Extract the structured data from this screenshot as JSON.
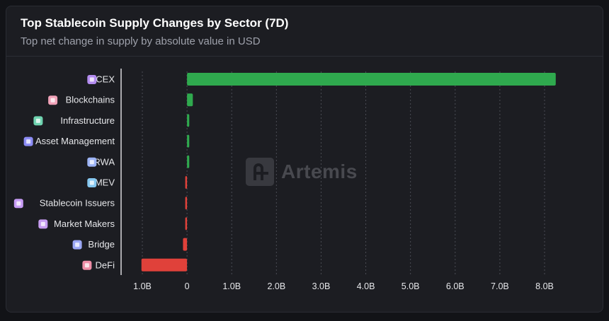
{
  "header": {
    "title": "Top Stablecoin Supply Changes by Sector (7D)",
    "subtitle": "Top net change in supply by absolute value in USD"
  },
  "watermark": {
    "text": "Artemis",
    "icon": "artemis-logo-icon"
  },
  "colors": {
    "positive": "#2fa94e",
    "negative": "#e0413a",
    "background": "#1c1d22",
    "text": "#e6e7ea",
    "grid": "#4a4c54"
  },
  "chart_data": {
    "type": "bar",
    "orientation": "horizontal",
    "categories": [
      "CEX",
      "Blockchains",
      "Infrastructure",
      "Asset Management",
      "RWA",
      "MEV",
      "Stablecoin Issuers",
      "Market Makers",
      "Bridge",
      "DeFi"
    ],
    "category_icons": [
      "cex-icon",
      "blockchains-icon",
      "infrastructure-icon",
      "asset-management-icon",
      "rwa-icon",
      "mev-icon",
      "stablecoin-issuers-icon",
      "market-makers-icon",
      "bridge-icon",
      "defi-icon"
    ],
    "icon_colors": [
      "#b38cf0",
      "#f0a2b8",
      "#6fd3b0",
      "#8c8cf5",
      "#9db4f5",
      "#86c8f0",
      "#c79cf5",
      "#c69cf0",
      "#9ca8f5",
      "#f08fa8"
    ],
    "values": [
      8.25,
      0.13,
      0.05,
      0.05,
      0.05,
      -0.04,
      -0.04,
      -0.04,
      -0.09,
      -1.02
    ],
    "xticks": [
      -1.0,
      0,
      1.0,
      2.0,
      3.0,
      4.0,
      5.0,
      6.0,
      7.0,
      8.0
    ],
    "xtick_labels": [
      "1.0B",
      "0",
      "1.0B",
      "2.0B",
      "3.0B",
      "4.0B",
      "5.0B",
      "6.0B",
      "7.0B",
      "8.0B"
    ],
    "xlim": [
      -1.0,
      8.0
    ],
    "unit": "B USD",
    "grid": "vertical-dashed",
    "legend": "none"
  }
}
